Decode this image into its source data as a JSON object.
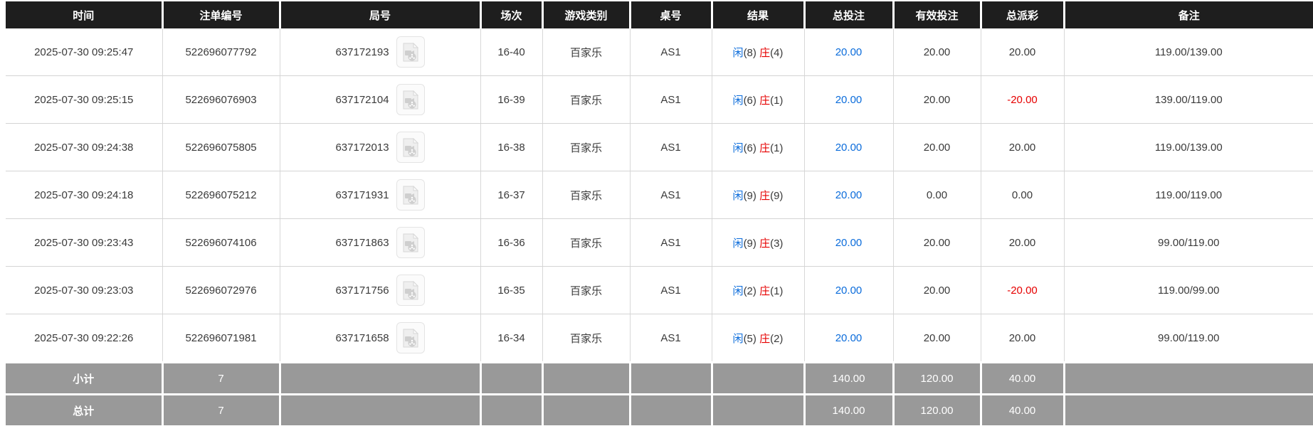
{
  "colors": {
    "header_bg": "#1e1e1e",
    "summary_bg": "#999999",
    "player_blue": "#0b6cdb",
    "banker_red": "#e60000",
    "bet_amount_blue": "#0b6cdb",
    "negative_red": "#e60000"
  },
  "icons": {
    "video": "video-icon"
  },
  "table": {
    "columns": [
      {
        "key": "time",
        "label": "时间"
      },
      {
        "key": "bet_id",
        "label": "注单编号"
      },
      {
        "key": "round_id",
        "label": "局号"
      },
      {
        "key": "session",
        "label": "场次"
      },
      {
        "key": "game_type",
        "label": "游戏类别"
      },
      {
        "key": "table_no",
        "label": "桌号"
      },
      {
        "key": "result",
        "label": "结果"
      },
      {
        "key": "total_bet",
        "label": "总投注"
      },
      {
        "key": "valid_bet",
        "label": "有效投注"
      },
      {
        "key": "payout",
        "label": "总派彩"
      },
      {
        "key": "remark",
        "label": "备注"
      }
    ],
    "rows": [
      {
        "time": "2025-07-30 09:25:47",
        "bet_id": "522696077792",
        "round_id": "637172193",
        "session": "16-40",
        "game_type": "百家乐",
        "table_no": "AS1",
        "result": {
          "player_label": "闲",
          "player_score": "(8)",
          "banker_label": "庄",
          "banker_score": "(4)"
        },
        "total_bet": "20.00",
        "valid_bet": "20.00",
        "payout": "20.00",
        "remark": "119.00/139.00"
      },
      {
        "time": "2025-07-30 09:25:15",
        "bet_id": "522696076903",
        "round_id": "637172104",
        "session": "16-39",
        "game_type": "百家乐",
        "table_no": "AS1",
        "result": {
          "player_label": "闲",
          "player_score": "(6)",
          "banker_label": "庄",
          "banker_score": "(1)"
        },
        "total_bet": "20.00",
        "valid_bet": "20.00",
        "payout": "-20.00",
        "remark": "139.00/119.00"
      },
      {
        "time": "2025-07-30 09:24:38",
        "bet_id": "522696075805",
        "round_id": "637172013",
        "session": "16-38",
        "game_type": "百家乐",
        "table_no": "AS1",
        "result": {
          "player_label": "闲",
          "player_score": "(6)",
          "banker_label": "庄",
          "banker_score": "(1)"
        },
        "total_bet": "20.00",
        "valid_bet": "20.00",
        "payout": "20.00",
        "remark": "119.00/139.00"
      },
      {
        "time": "2025-07-30 09:24:18",
        "bet_id": "522696075212",
        "round_id": "637171931",
        "session": "16-37",
        "game_type": "百家乐",
        "table_no": "AS1",
        "result": {
          "player_label": "闲",
          "player_score": "(9)",
          "banker_label": "庄",
          "banker_score": "(9)"
        },
        "total_bet": "20.00",
        "valid_bet": "0.00",
        "payout": "0.00",
        "remark": "119.00/119.00"
      },
      {
        "time": "2025-07-30 09:23:43",
        "bet_id": "522696074106",
        "round_id": "637171863",
        "session": "16-36",
        "game_type": "百家乐",
        "table_no": "AS1",
        "result": {
          "player_label": "闲",
          "player_score": "(9)",
          "banker_label": "庄",
          "banker_score": "(3)"
        },
        "total_bet": "20.00",
        "valid_bet": "20.00",
        "payout": "20.00",
        "remark": "99.00/119.00"
      },
      {
        "time": "2025-07-30 09:23:03",
        "bet_id": "522696072976",
        "round_id": "637171756",
        "session": "16-35",
        "game_type": "百家乐",
        "table_no": "AS1",
        "result": {
          "player_label": "闲",
          "player_score": "(2)",
          "banker_label": "庄",
          "banker_score": "(1)"
        },
        "total_bet": "20.00",
        "valid_bet": "20.00",
        "payout": "-20.00",
        "remark": "119.00/99.00"
      },
      {
        "time": "2025-07-30 09:22:26",
        "bet_id": "522696071981",
        "round_id": "637171658",
        "session": "16-34",
        "game_type": "百家乐",
        "table_no": "AS1",
        "result": {
          "player_label": "闲",
          "player_score": "(5)",
          "banker_label": "庄",
          "banker_score": "(2)"
        },
        "total_bet": "20.00",
        "valid_bet": "20.00",
        "payout": "20.00",
        "remark": "99.00/119.00"
      }
    ],
    "subtotal": {
      "label": "小计",
      "count": "7",
      "total_bet": "140.00",
      "valid_bet": "120.00",
      "payout": "40.00"
    },
    "total": {
      "label": "总计",
      "count": "7",
      "total_bet": "140.00",
      "valid_bet": "120.00",
      "payout": "40.00"
    }
  }
}
